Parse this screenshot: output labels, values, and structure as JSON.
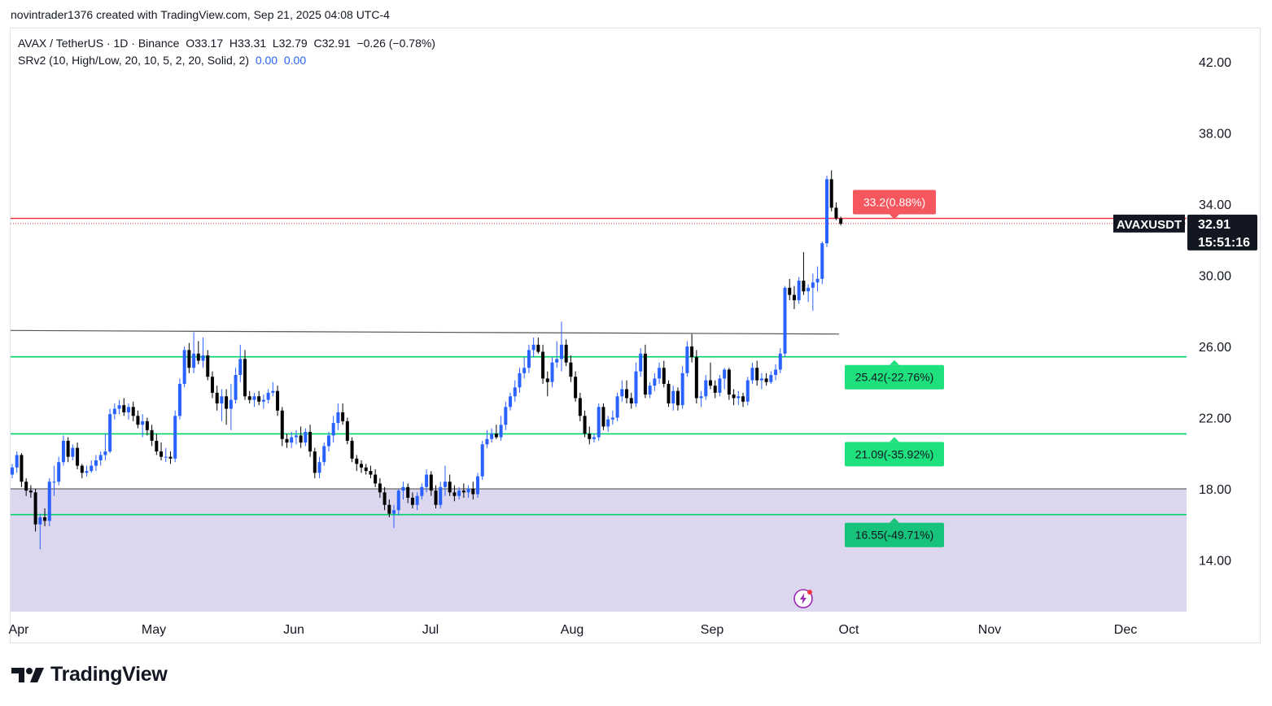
{
  "header": {
    "created_text": "novintrader1376 created with TradingView.com, Sep 21, 2025 04:08 UTC-4"
  },
  "legend": {
    "symbol_line": "AVAX / TetherUS · 1D · Binance",
    "o_label": "O",
    "o": "33.17",
    "h_label": "H",
    "h": "33.31",
    "l_label": "L",
    "l": "32.79",
    "c_label": "C",
    "c": "32.91",
    "change": "−0.26 (−0.78%)",
    "indicator": "SRv2 (10, High/Low, 20, 10, 5, 2, 20, Solid, 2)",
    "indicator_v1": "0.00",
    "indicator_v2": "0.00"
  },
  "price_label": {
    "symbol": "AVAXUSDT",
    "price": "32.91",
    "countdown": "15:51:16"
  },
  "brand": {
    "name": "TradingView"
  },
  "colors": {
    "up": "#2962ff",
    "down": "#000000",
    "support": "#00d26a",
    "resistance": "#f23645",
    "zone": "#dcd6ee",
    "trendline": "#555555"
  },
  "chart_data": {
    "type": "candlestick",
    "y_axis": {
      "ticks": [
        42,
        38,
        34,
        30,
        26,
        22,
        18,
        14
      ],
      "tick_labels": [
        "42.00",
        "38.00",
        "34.00",
        "30.00",
        "26.00",
        "22.00",
        "18.00",
        "14.00"
      ]
    },
    "x_axis": {
      "labels": [
        "Apr",
        "May",
        "Jun",
        "Jul",
        "Aug",
        "Sep",
        "Oct",
        "Nov",
        "Dec"
      ]
    },
    "levels": [
      {
        "value": 33.2,
        "label": "33.2(0.88%)",
        "kind": "resistance"
      },
      {
        "value": 25.42,
        "label": "25.42(-22.76%)",
        "kind": "support"
      },
      {
        "value": 21.09,
        "label": "21.09(-35.92%)",
        "kind": "support"
      },
      {
        "value": 16.55,
        "label": "16.55(-49.71%)",
        "kind": "support"
      }
    ],
    "zone": {
      "top": 18.0,
      "bottom": 11.0
    },
    "trendline": {
      "start_price": 26.9,
      "end_price": 26.7
    },
    "last_price": 32.91,
    "candles": [
      [
        18.8,
        19.4,
        18.6,
        19.2
      ],
      [
        19.2,
        20.1,
        18.9,
        19.9
      ],
      [
        19.9,
        20.0,
        18.1,
        18.4
      ],
      [
        18.4,
        18.6,
        17.6,
        17.9
      ],
      [
        17.9,
        18.2,
        17.5,
        17.8
      ],
      [
        17.8,
        18.0,
        15.6,
        16.0
      ],
      [
        16.0,
        16.6,
        14.6,
        16.4
      ],
      [
        16.4,
        16.9,
        15.9,
        16.2
      ],
      [
        16.2,
        18.6,
        15.9,
        18.4
      ],
      [
        18.4,
        19.3,
        17.6,
        18.4
      ],
      [
        18.4,
        19.8,
        18.2,
        19.5
      ],
      [
        19.5,
        21.0,
        19.3,
        20.7
      ],
      [
        20.7,
        20.9,
        19.5,
        19.8
      ],
      [
        19.8,
        20.5,
        19.6,
        20.3
      ],
      [
        20.3,
        20.6,
        19.1,
        19.3
      ],
      [
        19.3,
        19.4,
        18.6,
        18.9
      ],
      [
        18.9,
        19.3,
        18.7,
        19.0
      ],
      [
        19.0,
        19.6,
        18.9,
        19.3
      ],
      [
        19.3,
        19.9,
        19.0,
        19.6
      ],
      [
        19.6,
        20.1,
        19.3,
        19.9
      ],
      [
        19.9,
        21.1,
        19.6,
        20.1
      ],
      [
        20.1,
        22.5,
        20.0,
        22.2
      ],
      [
        22.2,
        22.8,
        21.9,
        22.5
      ],
      [
        22.5,
        23.0,
        22.2,
        22.7
      ],
      [
        22.7,
        23.1,
        22.1,
        22.3
      ],
      [
        22.3,
        22.8,
        21.9,
        22.6
      ],
      [
        22.6,
        22.9,
        21.8,
        22.1
      ],
      [
        22.1,
        22.4,
        21.4,
        21.6
      ],
      [
        21.6,
        22.2,
        20.9,
        21.8
      ],
      [
        21.8,
        22.0,
        21.0,
        21.3
      ],
      [
        21.3,
        21.6,
        20.4,
        20.7
      ],
      [
        20.7,
        21.1,
        19.9,
        20.1
      ],
      [
        20.1,
        20.6,
        19.6,
        19.8
      ],
      [
        19.8,
        20.3,
        19.5,
        19.8
      ],
      [
        19.8,
        20.1,
        19.4,
        19.7
      ],
      [
        19.7,
        22.4,
        19.5,
        22.1
      ],
      [
        22.1,
        24.2,
        21.9,
        23.9
      ],
      [
        23.9,
        26.0,
        23.7,
        25.8
      ],
      [
        25.8,
        26.2,
        24.5,
        24.8
      ],
      [
        24.8,
        26.8,
        24.5,
        25.6
      ],
      [
        25.6,
        26.3,
        25.0,
        25.2
      ],
      [
        25.2,
        26.5,
        24.8,
        25.5
      ],
      [
        25.5,
        25.8,
        24.1,
        24.3
      ],
      [
        24.3,
        24.6,
        23.1,
        23.4
      ],
      [
        23.4,
        23.8,
        22.4,
        22.8
      ],
      [
        22.8,
        23.6,
        21.8,
        23.2
      ],
      [
        23.2,
        23.6,
        21.6,
        22.5
      ],
      [
        22.5,
        23.9,
        21.3,
        23.0
      ],
      [
        23.0,
        24.8,
        22.8,
        24.4
      ],
      [
        24.4,
        26.1,
        24.0,
        25.3
      ],
      [
        25.3,
        25.8,
        23.0,
        23.2
      ],
      [
        23.2,
        23.5,
        22.8,
        23.0
      ],
      [
        23.0,
        23.4,
        22.6,
        23.2
      ],
      [
        23.2,
        23.5,
        22.7,
        22.9
      ],
      [
        22.9,
        23.3,
        22.5,
        23.0
      ],
      [
        23.0,
        23.6,
        22.8,
        23.4
      ],
      [
        23.4,
        24.0,
        23.2,
        23.5
      ],
      [
        23.5,
        23.8,
        22.1,
        22.4
      ],
      [
        22.4,
        22.6,
        20.4,
        20.8
      ],
      [
        20.8,
        21.1,
        20.3,
        20.6
      ],
      [
        20.6,
        21.2,
        20.3,
        20.9
      ],
      [
        20.9,
        21.3,
        20.5,
        21.0
      ],
      [
        21.0,
        21.5,
        20.3,
        20.6
      ],
      [
        20.6,
        21.4,
        20.4,
        21.2
      ],
      [
        21.2,
        21.6,
        19.8,
        20.1
      ],
      [
        20.1,
        20.3,
        18.6,
        18.9
      ],
      [
        18.9,
        19.8,
        18.6,
        19.5
      ],
      [
        19.5,
        20.6,
        19.3,
        20.4
      ],
      [
        20.4,
        21.2,
        20.1,
        21.0
      ],
      [
        21.0,
        22.1,
        20.6,
        21.7
      ],
      [
        21.7,
        22.8,
        21.3,
        22.3
      ],
      [
        22.3,
        22.8,
        21.6,
        21.8
      ],
      [
        21.8,
        22.0,
        20.5,
        20.7
      ],
      [
        20.7,
        20.9,
        19.5,
        19.7
      ],
      [
        19.7,
        19.9,
        19.0,
        19.4
      ],
      [
        19.4,
        19.6,
        18.9,
        19.2
      ],
      [
        19.2,
        19.4,
        18.8,
        19.0
      ],
      [
        19.0,
        19.3,
        18.6,
        18.8
      ],
      [
        18.8,
        19.1,
        18.1,
        18.3
      ],
      [
        18.3,
        18.6,
        17.5,
        17.8
      ],
      [
        17.8,
        18.1,
        16.8,
        17.1
      ],
      [
        17.1,
        17.4,
        16.4,
        16.6
      ],
      [
        16.6,
        17.1,
        15.8,
        16.8
      ],
      [
        16.8,
        18.0,
        16.5,
        17.9
      ],
      [
        17.9,
        18.4,
        17.4,
        18.1
      ],
      [
        18.1,
        18.3,
        17.2,
        17.5
      ],
      [
        17.5,
        17.8,
        16.9,
        17.1
      ],
      [
        17.1,
        17.8,
        16.8,
        17.6
      ],
      [
        17.6,
        18.3,
        17.4,
        18.1
      ],
      [
        18.1,
        19.1,
        17.8,
        18.8
      ],
      [
        18.8,
        19.0,
        17.6,
        17.9
      ],
      [
        17.9,
        18.2,
        16.9,
        17.1
      ],
      [
        17.1,
        18.4,
        16.9,
        18.1
      ],
      [
        18.1,
        19.3,
        17.6,
        18.4
      ],
      [
        18.4,
        18.8,
        17.6,
        17.8
      ],
      [
        17.8,
        18.2,
        17.3,
        17.6
      ],
      [
        17.6,
        18.1,
        17.4,
        17.9
      ],
      [
        17.9,
        18.3,
        17.5,
        17.8
      ],
      [
        17.8,
        18.2,
        17.5,
        18.0
      ],
      [
        18.0,
        18.4,
        17.4,
        17.7
      ],
      [
        17.7,
        18.9,
        17.5,
        18.7
      ],
      [
        18.7,
        20.7,
        18.5,
        20.5
      ],
      [
        20.5,
        21.3,
        20.3,
        20.8
      ],
      [
        20.8,
        21.4,
        20.6,
        21.1
      ],
      [
        21.1,
        21.6,
        20.8,
        20.9
      ],
      [
        20.9,
        22.1,
        20.7,
        21.6
      ],
      [
        21.6,
        22.9,
        21.3,
        22.6
      ],
      [
        22.6,
        23.4,
        22.4,
        23.2
      ],
      [
        23.2,
        24.1,
        22.9,
        23.7
      ],
      [
        23.7,
        24.8,
        23.4,
        24.5
      ],
      [
        24.5,
        25.4,
        24.2,
        24.8
      ],
      [
        24.8,
        26.1,
        24.5,
        25.8
      ],
      [
        25.8,
        26.5,
        25.4,
        26.1
      ],
      [
        26.1,
        26.5,
        25.6,
        25.7
      ],
      [
        25.7,
        26.1,
        23.9,
        24.2
      ],
      [
        24.2,
        24.6,
        23.2,
        24.0
      ],
      [
        24.0,
        25.4,
        23.7,
        25.1
      ],
      [
        25.1,
        26.3,
        24.8,
        25.3
      ],
      [
        25.3,
        27.4,
        24.6,
        26.1
      ],
      [
        26.1,
        26.4,
        24.9,
        25.1
      ],
      [
        25.1,
        25.5,
        24.0,
        24.3
      ],
      [
        24.3,
        24.6,
        22.9,
        23.1
      ],
      [
        23.1,
        23.4,
        21.8,
        22.1
      ],
      [
        22.1,
        22.4,
        20.9,
        21.1
      ],
      [
        21.1,
        21.5,
        20.5,
        20.8
      ],
      [
        20.8,
        21.1,
        20.6,
        20.9
      ],
      [
        20.9,
        22.8,
        20.7,
        22.6
      ],
      [
        22.6,
        22.8,
        21.3,
        21.5
      ],
      [
        21.5,
        22.1,
        21.2,
        21.9
      ],
      [
        21.9,
        22.4,
        21.6,
        22.0
      ],
      [
        22.0,
        23.4,
        21.8,
        23.2
      ],
      [
        23.2,
        24.1,
        22.9,
        23.6
      ],
      [
        23.6,
        24.1,
        22.8,
        23.1
      ],
      [
        23.1,
        23.4,
        22.5,
        22.8
      ],
      [
        22.8,
        25.1,
        22.6,
        24.6
      ],
      [
        24.6,
        25.9,
        24.3,
        25.6
      ],
      [
        25.6,
        26.1,
        23.1,
        23.3
      ],
      [
        23.3,
        24.0,
        23.1,
        23.8
      ],
      [
        23.8,
        24.5,
        23.5,
        24.2
      ],
      [
        24.2,
        25.1,
        23.9,
        24.8
      ],
      [
        24.8,
        25.2,
        23.7,
        23.9
      ],
      [
        23.9,
        24.1,
        22.6,
        22.8
      ],
      [
        22.8,
        23.8,
        22.4,
        23.5
      ],
      [
        23.5,
        23.7,
        22.4,
        22.7
      ],
      [
        22.7,
        24.9,
        22.5,
        24.5
      ],
      [
        24.5,
        26.3,
        24.3,
        26.0
      ],
      [
        26.0,
        26.7,
        25.1,
        25.4
      ],
      [
        25.4,
        25.8,
        22.8,
        23.1
      ],
      [
        23.1,
        23.5,
        22.6,
        23.2
      ],
      [
        23.2,
        24.4,
        23.0,
        24.1
      ],
      [
        24.1,
        25.1,
        23.6,
        23.8
      ],
      [
        23.8,
        24.1,
        23.1,
        23.4
      ],
      [
        23.4,
        24.4,
        23.2,
        24.2
      ],
      [
        24.2,
        24.8,
        23.6,
        24.7
      ],
      [
        24.7,
        24.8,
        23.0,
        23.3
      ],
      [
        23.3,
        23.6,
        22.7,
        23.1
      ],
      [
        23.1,
        23.5,
        22.7,
        23.2
      ],
      [
        23.2,
        23.4,
        22.6,
        22.9
      ],
      [
        22.9,
        24.3,
        22.7,
        24.1
      ],
      [
        24.1,
        25.1,
        23.9,
        24.8
      ],
      [
        24.8,
        25.2,
        23.8,
        24.1
      ],
      [
        24.1,
        24.5,
        23.6,
        24.2
      ],
      [
        24.2,
        24.5,
        23.8,
        24.0
      ],
      [
        24.0,
        24.6,
        23.9,
        24.4
      ],
      [
        24.4,
        25.0,
        24.1,
        24.7
      ],
      [
        24.7,
        25.9,
        24.5,
        25.6
      ],
      [
        25.6,
        29.4,
        25.4,
        29.3
      ],
      [
        29.3,
        29.8,
        28.6,
        28.9
      ],
      [
        28.9,
        29.4,
        28.1,
        28.6
      ],
      [
        28.6,
        29.9,
        28.4,
        29.7
      ],
      [
        29.7,
        31.3,
        28.9,
        29.1
      ],
      [
        29.1,
        29.5,
        28.5,
        29.3
      ],
      [
        29.3,
        30.1,
        28.0,
        29.6
      ],
      [
        29.6,
        30.5,
        29.1,
        29.8
      ],
      [
        29.8,
        31.9,
        29.5,
        31.8
      ],
      [
        31.8,
        35.6,
        31.6,
        35.4
      ],
      [
        35.4,
        35.9,
        33.6,
        33.8
      ],
      [
        33.8,
        34.1,
        33.1,
        33.2
      ],
      [
        33.2,
        33.3,
        32.8,
        32.9
      ]
    ]
  }
}
